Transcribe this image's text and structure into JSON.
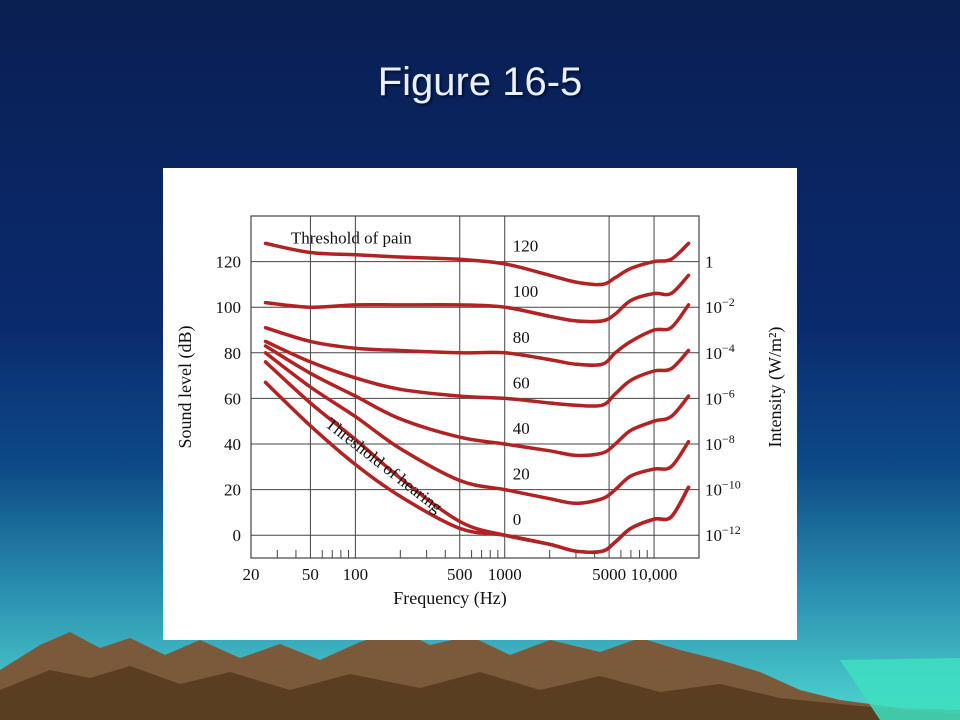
{
  "slide": {
    "title": "Figure 16-5"
  },
  "colors": {
    "curve": "#b22222",
    "grid": "#444444",
    "panel": "#ffffff"
  },
  "chart_data": {
    "type": "line",
    "xscale": "log",
    "xlim": [
      20,
      20000
    ],
    "ylim": [
      -10,
      140
    ],
    "xlabel": "Frequency (Hz)",
    "ylabel": "Sound level (dB)",
    "y2label": "Intensity (W/m²)",
    "x_ticks": [
      {
        "value": 20,
        "label": "20"
      },
      {
        "value": 50,
        "label": "50"
      },
      {
        "value": 100,
        "label": "100"
      },
      {
        "value": 500,
        "label": "500"
      },
      {
        "value": 1000,
        "label": "1000"
      },
      {
        "value": 5000,
        "label": "5000"
      },
      {
        "value": 10000,
        "label": "10,000"
      }
    ],
    "y_ticks": [
      {
        "value": 0,
        "label": "0"
      },
      {
        "value": 20,
        "label": "20"
      },
      {
        "value": 40,
        "label": "40"
      },
      {
        "value": 60,
        "label": "60"
      },
      {
        "value": 80,
        "label": "80"
      },
      {
        "value": 100,
        "label": "100"
      },
      {
        "value": 120,
        "label": "120"
      }
    ],
    "y2_ticks": [
      {
        "value": 0,
        "base": "10",
        "exp": "−12"
      },
      {
        "value": 20,
        "base": "10",
        "exp": "−10"
      },
      {
        "value": 40,
        "base": "10",
        "exp": "−8"
      },
      {
        "value": 60,
        "base": "10",
        "exp": "−6"
      },
      {
        "value": 80,
        "base": "10",
        "exp": "−4"
      },
      {
        "value": 100,
        "base": "10",
        "exp": "−2"
      },
      {
        "value": 120,
        "base": "1",
        "exp": ""
      }
    ],
    "minor_x_ticks": [
      30,
      40,
      60,
      70,
      80,
      90,
      200,
      300,
      400,
      600,
      700,
      800,
      900,
      2000,
      3000,
      4000,
      6000,
      7000,
      8000,
      9000
    ],
    "series": [
      {
        "name": "120",
        "label_x": 1000,
        "label_y": 127,
        "points": [
          [
            25,
            128
          ],
          [
            50,
            124
          ],
          [
            100,
            123
          ],
          [
            200,
            122
          ],
          [
            500,
            121
          ],
          [
            1000,
            119
          ],
          [
            2000,
            114
          ],
          [
            3000,
            111
          ],
          [
            4500,
            110
          ],
          [
            5500,
            113
          ],
          [
            7000,
            117
          ],
          [
            10000,
            120
          ],
          [
            13000,
            121
          ],
          [
            17000,
            128
          ]
        ]
      },
      {
        "name": "100",
        "label_x": 1000,
        "label_y": 107,
        "points": [
          [
            25,
            102
          ],
          [
            50,
            100
          ],
          [
            100,
            101
          ],
          [
            200,
            101
          ],
          [
            500,
            101
          ],
          [
            1000,
            100
          ],
          [
            2000,
            96
          ],
          [
            3000,
            94
          ],
          [
            4500,
            94
          ],
          [
            5500,
            97
          ],
          [
            7000,
            103
          ],
          [
            10000,
            106
          ],
          [
            13000,
            106
          ],
          [
            17000,
            114
          ]
        ]
      },
      {
        "name": "80",
        "label_x": 1000,
        "label_y": 87,
        "points": [
          [
            25,
            91
          ],
          [
            50,
            85
          ],
          [
            100,
            82
          ],
          [
            200,
            81
          ],
          [
            500,
            80
          ],
          [
            1000,
            80
          ],
          [
            2000,
            77
          ],
          [
            3000,
            75
          ],
          [
            4500,
            75
          ],
          [
            5500,
            80
          ],
          [
            7000,
            85
          ],
          [
            10000,
            90
          ],
          [
            13000,
            91
          ],
          [
            17000,
            101
          ]
        ]
      },
      {
        "name": "60",
        "label_x": 1000,
        "label_y": 67,
        "points": [
          [
            25,
            85
          ],
          [
            50,
            76
          ],
          [
            100,
            69
          ],
          [
            200,
            64
          ],
          [
            500,
            61
          ],
          [
            1000,
            60
          ],
          [
            2000,
            58
          ],
          [
            3000,
            57
          ],
          [
            4500,
            57
          ],
          [
            5500,
            62
          ],
          [
            7000,
            68
          ],
          [
            10000,
            72
          ],
          [
            13000,
            73
          ],
          [
            17000,
            81
          ]
        ]
      },
      {
        "name": "40",
        "label_x": 1000,
        "label_y": 47,
        "points": [
          [
            25,
            83
          ],
          [
            50,
            71
          ],
          [
            100,
            61
          ],
          [
            200,
            51
          ],
          [
            500,
            43
          ],
          [
            1000,
            40
          ],
          [
            2000,
            37
          ],
          [
            3000,
            35
          ],
          [
            4500,
            36
          ],
          [
            5500,
            40
          ],
          [
            7000,
            46
          ],
          [
            10000,
            50
          ],
          [
            13000,
            52
          ],
          [
            17000,
            61
          ]
        ]
      },
      {
        "name": "20",
        "label_x": 1000,
        "label_y": 27,
        "points": [
          [
            25,
            80
          ],
          [
            50,
            65
          ],
          [
            100,
            52
          ],
          [
            200,
            38
          ],
          [
            500,
            24
          ],
          [
            1000,
            20
          ],
          [
            2000,
            16
          ],
          [
            3000,
            14
          ],
          [
            4500,
            16
          ],
          [
            5500,
            20
          ],
          [
            7000,
            26
          ],
          [
            10000,
            29
          ],
          [
            13000,
            30
          ],
          [
            17000,
            41
          ]
        ]
      },
      {
        "name": "0",
        "label_x": 1000,
        "label_y": 7,
        "points": [
          [
            25,
            76
          ],
          [
            50,
            58
          ],
          [
            100,
            42
          ],
          [
            200,
            25
          ],
          [
            500,
            6
          ],
          [
            1000,
            0
          ],
          [
            2000,
            -4
          ],
          [
            3000,
            -7
          ],
          [
            4500,
            -7
          ],
          [
            5500,
            -3
          ],
          [
            7000,
            3
          ],
          [
            10000,
            7
          ],
          [
            13000,
            8
          ],
          [
            17000,
            21
          ]
        ]
      },
      {
        "name": "Threshold of hearing",
        "label_x": 90,
        "label_y": 34,
        "points": [
          [
            25,
            67
          ],
          [
            50,
            48
          ],
          [
            100,
            31
          ],
          [
            200,
            17
          ],
          [
            500,
            3
          ],
          [
            1000,
            0
          ],
          [
            2000,
            -4
          ],
          [
            3000,
            -7
          ],
          [
            4500,
            -7
          ],
          [
            5500,
            -3
          ],
          [
            7000,
            3
          ],
          [
            10000,
            7
          ],
          [
            13000,
            8
          ],
          [
            17000,
            21
          ]
        ]
      }
    ],
    "annotations": [
      {
        "text": "Threshold of pain",
        "x": 37,
        "y": 128
      },
      {
        "text": "Threshold of hearing",
        "x": 62,
        "y": 48,
        "rotate": 38
      }
    ]
  }
}
